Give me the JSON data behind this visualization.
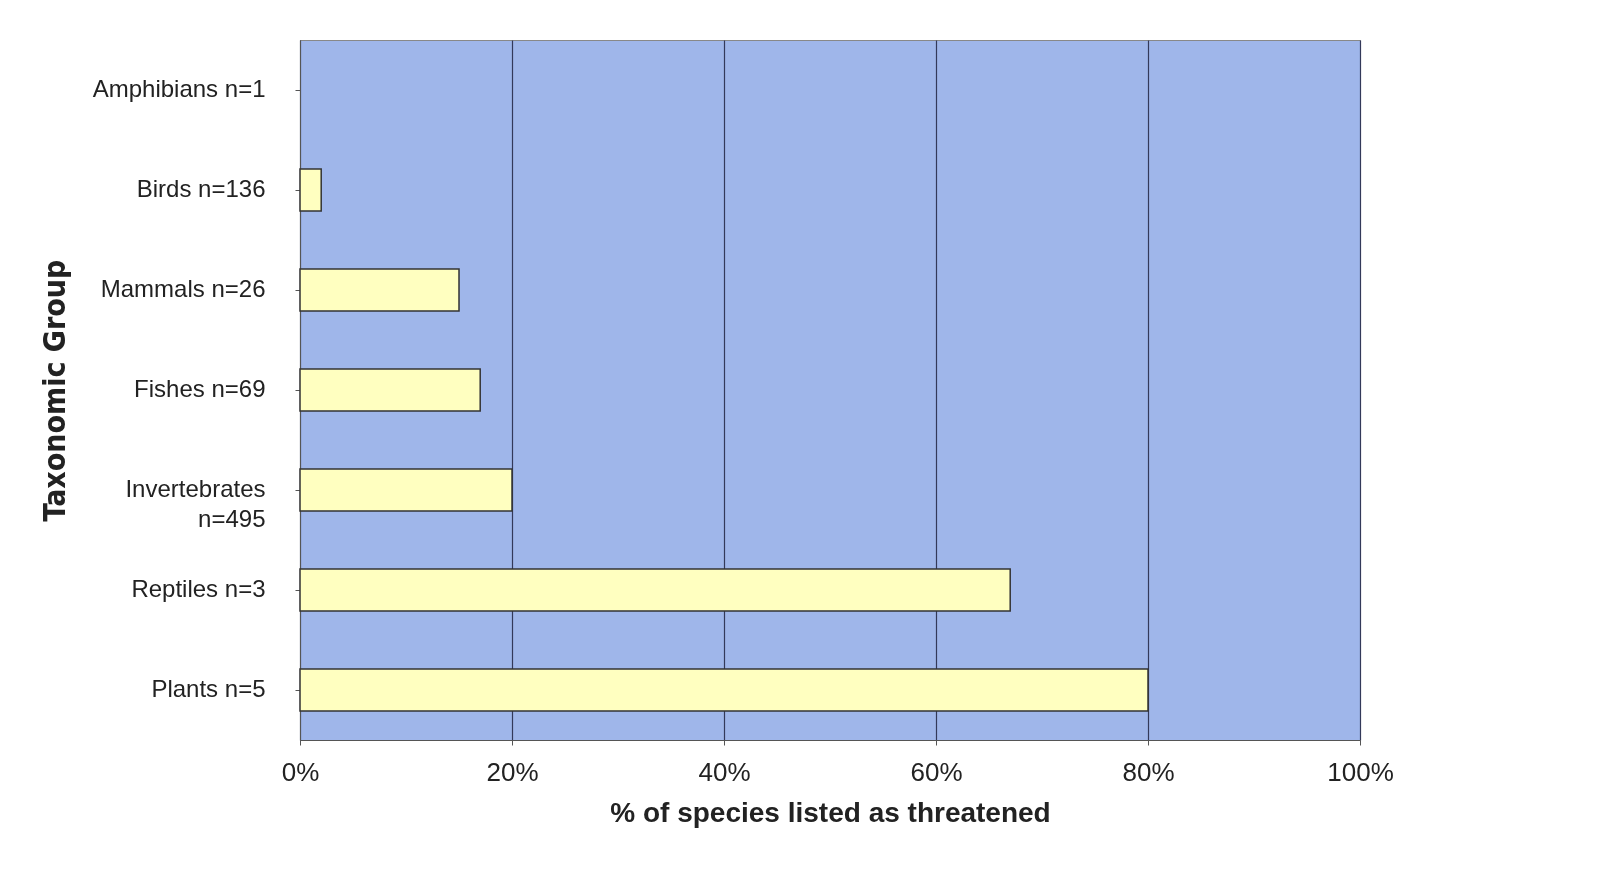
{
  "chart_data": {
    "type": "bar",
    "orientation": "horizontal",
    "xlabel": "% of species listed as threatened",
    "ylabel": "Taxonomic Group",
    "categories": [
      "Amphibians n=1",
      "Birds n=136",
      "Mammals n=26",
      "Fishes n=69",
      "Invertebrates n=495",
      "Reptiles n=3",
      "Plants n=5"
    ],
    "values": [
      0,
      2,
      15,
      17,
      20,
      67,
      80
    ],
    "color": "#ffffc0",
    "xlim": [
      0,
      100
    ],
    "xticks": [
      {
        "value": 0,
        "label": "0%"
      },
      {
        "value": 20,
        "label": "20%"
      },
      {
        "value": 40,
        "label": "40%"
      },
      {
        "value": 60,
        "label": "60%"
      },
      {
        "value": 80,
        "label": "80%"
      },
      {
        "value": 100,
        "label": "100%"
      }
    ],
    "grid": "x"
  }
}
